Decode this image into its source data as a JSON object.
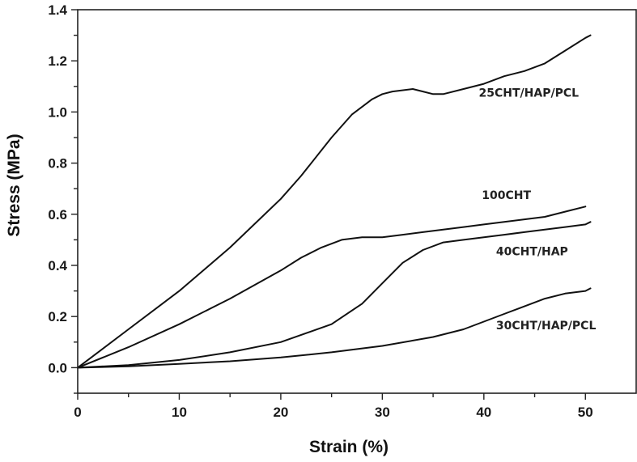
{
  "chart_data": {
    "type": "line",
    "title": "",
    "xlabel": "Strain (%)",
    "ylabel": "Stress (MPa)",
    "xlim": [
      0,
      55
    ],
    "ylim": [
      -0.1,
      1.4
    ],
    "xticks": [
      0,
      10,
      20,
      30,
      40,
      50
    ],
    "yticks": [
      0.0,
      0.2,
      0.4,
      0.6,
      0.8,
      1.0,
      1.2,
      1.4
    ],
    "xtick_labels": [
      "0",
      "10",
      "20",
      "30",
      "40",
      "50"
    ],
    "ytick_labels": [
      "0.0",
      "0.2",
      "0.4",
      "0.6",
      "0.8",
      "1.0",
      "1.2",
      "1.4"
    ],
    "grid": false,
    "legend": "none (series labelled inline)",
    "series": [
      {
        "name": "25CHT/HAP/PCL",
        "label_at": [
          39.5,
          1.06
        ],
        "x": [
          0,
          5,
          10,
          15,
          20,
          22,
          25,
          27,
          29,
          30,
          31,
          33,
          34,
          35,
          36,
          38,
          40,
          42,
          44,
          46,
          48,
          50,
          50.5
        ],
        "y": [
          0.0,
          0.15,
          0.3,
          0.47,
          0.66,
          0.75,
          0.9,
          0.99,
          1.05,
          1.07,
          1.08,
          1.09,
          1.08,
          1.07,
          1.07,
          1.09,
          1.11,
          1.14,
          1.16,
          1.19,
          1.24,
          1.29,
          1.3
        ]
      },
      {
        "name": "100CHT",
        "label_at": [
          39.8,
          0.66
        ],
        "x": [
          0,
          5,
          10,
          15,
          20,
          22,
          24,
          26,
          28,
          30,
          32,
          34,
          36,
          38,
          40,
          42,
          44,
          46,
          48,
          50
        ],
        "y": [
          0.0,
          0.08,
          0.17,
          0.27,
          0.38,
          0.43,
          0.47,
          0.5,
          0.51,
          0.51,
          0.52,
          0.53,
          0.54,
          0.55,
          0.56,
          0.57,
          0.58,
          0.59,
          0.61,
          0.63
        ]
      },
      {
        "name": "40CHT/HAP",
        "label_at": [
          41.2,
          0.44
        ],
        "x": [
          0,
          5,
          10,
          15,
          20,
          25,
          28,
          30,
          32,
          34,
          36,
          38,
          40,
          42,
          44,
          46,
          48,
          50,
          50.5
        ],
        "y": [
          0.0,
          0.01,
          0.03,
          0.06,
          0.1,
          0.17,
          0.25,
          0.33,
          0.41,
          0.46,
          0.49,
          0.5,
          0.51,
          0.52,
          0.53,
          0.54,
          0.55,
          0.56,
          0.57
        ]
      },
      {
        "name": "30CHT/HAP/PCL",
        "label_at": [
          41.2,
          0.15
        ],
        "x": [
          0,
          5,
          10,
          15,
          20,
          25,
          30,
          35,
          38,
          40,
          42,
          44,
          46,
          48,
          50,
          50.5
        ],
        "y": [
          0.0,
          0.005,
          0.015,
          0.025,
          0.04,
          0.06,
          0.085,
          0.12,
          0.15,
          0.18,
          0.21,
          0.24,
          0.27,
          0.29,
          0.3,
          0.31
        ]
      }
    ]
  }
}
